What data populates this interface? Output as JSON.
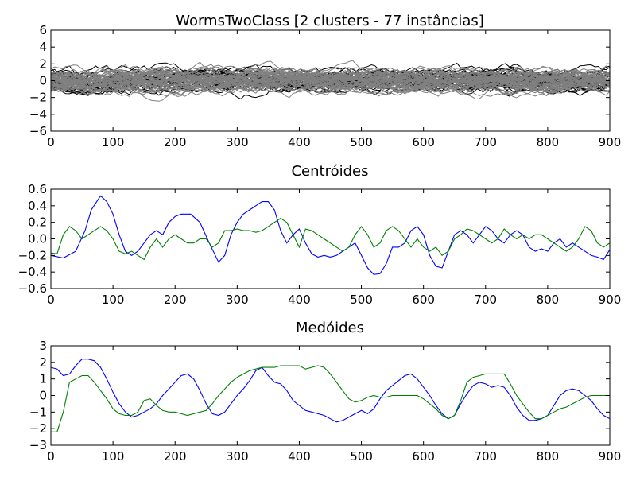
{
  "chart_data": [
    {
      "type": "line",
      "title": "WormsTwoClass [2 clusters - 77 instâncias]",
      "xlim": [
        0,
        900
      ],
      "ylim": [
        -6,
        6
      ],
      "xticks": [
        0,
        100,
        200,
        300,
        400,
        500,
        600,
        700,
        800,
        900
      ],
      "yticks": [
        -6,
        -4,
        -2,
        0,
        2,
        4,
        6
      ],
      "grid": false,
      "legend": "none",
      "series": [
        {
          "color": "#000000",
          "count": 28,
          "amplitude": 2.8
        },
        {
          "color": "#808080",
          "count": 49,
          "amplitude": 3.2
        }
      ]
    },
    {
      "type": "line",
      "title": "Centróides",
      "xlim": [
        0,
        900
      ],
      "ylim": [
        -0.6,
        0.6
      ],
      "xticks": [
        0,
        100,
        200,
        300,
        400,
        500,
        600,
        700,
        800,
        900
      ],
      "yticks": [
        -0.6,
        -0.4,
        -0.2,
        0.0,
        0.2,
        0.4,
        0.6
      ],
      "grid": false,
      "legend": "none",
      "series": [
        {
          "color": "#0000ff",
          "x": [
            0,
            20,
            40,
            55,
            65,
            80,
            90,
            100,
            110,
            120,
            130,
            140,
            150,
            160,
            170,
            180,
            190,
            200,
            210,
            225,
            240,
            255,
            270,
            280,
            290,
            300,
            310,
            320,
            330,
            340,
            350,
            360,
            370,
            380,
            390,
            400,
            410,
            420,
            430,
            440,
            450,
            460,
            470,
            480,
            490,
            500,
            510,
            520,
            530,
            540,
            550,
            560,
            570,
            580,
            590,
            600,
            610,
            620,
            630,
            640,
            650,
            660,
            670,
            680,
            690,
            700,
            710,
            720,
            730,
            740,
            750,
            760,
            770,
            780,
            790,
            800,
            810,
            820,
            830,
            840,
            850,
            860,
            870,
            880,
            890,
            900
          ],
          "y": [
            -0.2,
            -0.23,
            -0.15,
            0.1,
            0.35,
            0.52,
            0.45,
            0.3,
            0.05,
            -0.15,
            -0.2,
            -0.15,
            -0.05,
            0.05,
            0.1,
            0.05,
            0.2,
            0.27,
            0.3,
            0.3,
            0.2,
            -0.05,
            -0.28,
            -0.2,
            0.05,
            0.2,
            0.3,
            0.35,
            0.4,
            0.45,
            0.45,
            0.35,
            0.1,
            -0.05,
            0.05,
            0.12,
            -0.05,
            -0.18,
            -0.22,
            -0.2,
            -0.22,
            -0.2,
            -0.15,
            -0.1,
            -0.05,
            -0.2,
            -0.35,
            -0.43,
            -0.42,
            -0.3,
            -0.1,
            -0.1,
            -0.05,
            0.1,
            0.15,
            0.05,
            -0.2,
            -0.33,
            -0.35,
            -0.15,
            0.05,
            0.1,
            0.05,
            -0.05,
            0.05,
            0.15,
            0.1,
            0.0,
            -0.05,
            0.05,
            0.1,
            0.05,
            -0.1,
            -0.15,
            -0.12,
            -0.15,
            -0.05,
            0.0,
            -0.1,
            -0.05,
            -0.1,
            -0.15,
            -0.2,
            -0.22,
            -0.25,
            -0.13
          ]
        },
        {
          "color": "#008000",
          "x": [
            0,
            10,
            20,
            30,
            40,
            50,
            60,
            70,
            80,
            90,
            100,
            110,
            120,
            130,
            140,
            150,
            160,
            170,
            180,
            190,
            200,
            210,
            220,
            230,
            240,
            250,
            260,
            270,
            280,
            290,
            300,
            310,
            320,
            330,
            340,
            350,
            360,
            370,
            380,
            390,
            400,
            410,
            420,
            430,
            440,
            450,
            460,
            470,
            480,
            490,
            500,
            510,
            520,
            530,
            540,
            550,
            560,
            570,
            580,
            590,
            600,
            610,
            620,
            630,
            640,
            650,
            660,
            670,
            680,
            690,
            700,
            710,
            720,
            730,
            740,
            750,
            760,
            770,
            780,
            790,
            800,
            810,
            820,
            830,
            840,
            850,
            860,
            870,
            880,
            890,
            900
          ],
          "y": [
            -0.17,
            -0.18,
            0.05,
            0.15,
            0.1,
            0.0,
            0.05,
            0.1,
            0.15,
            0.1,
            0.0,
            -0.15,
            -0.18,
            -0.15,
            -0.2,
            -0.25,
            -0.1,
            0.0,
            -0.1,
            0.0,
            0.05,
            0.0,
            -0.05,
            -0.05,
            0.0,
            0.0,
            -0.1,
            -0.05,
            0.1,
            0.1,
            0.12,
            0.1,
            0.1,
            0.08,
            0.1,
            0.15,
            0.2,
            0.25,
            0.2,
            0.05,
            -0.1,
            0.12,
            0.1,
            0.05,
            0.0,
            -0.05,
            -0.1,
            -0.15,
            -0.1,
            0.05,
            0.15,
            0.05,
            -0.1,
            -0.05,
            0.1,
            0.15,
            0.1,
            0.0,
            -0.1,
            0.0,
            -0.1,
            -0.15,
            -0.1,
            -0.2,
            -0.15,
            0.0,
            0.05,
            0.12,
            0.1,
            0.05,
            0.0,
            -0.05,
            0.0,
            0.12,
            0.05,
            0.0,
            0.05,
            0.0,
            0.05,
            0.05,
            0.0,
            -0.05,
            -0.1,
            -0.15,
            -0.1,
            0.0,
            0.15,
            0.1,
            -0.05,
            -0.1,
            -0.05
          ]
        }
      ]
    },
    {
      "type": "line",
      "title": "Medóides",
      "xlim": [
        0,
        900
      ],
      "ylim": [
        -3,
        3
      ],
      "xticks": [
        0,
        100,
        200,
        300,
        400,
        500,
        600,
        700,
        800,
        900
      ],
      "yticks": [
        -3,
        -2,
        -1,
        0,
        1,
        2,
        3
      ],
      "grid": false,
      "legend": "none",
      "series": [
        {
          "color": "#0000ff",
          "x": [
            0,
            10,
            20,
            30,
            40,
            50,
            60,
            70,
            80,
            90,
            100,
            110,
            120,
            130,
            140,
            150,
            160,
            170,
            180,
            190,
            200,
            210,
            220,
            230,
            240,
            250,
            260,
            270,
            280,
            290,
            300,
            310,
            320,
            330,
            340,
            350,
            360,
            370,
            380,
            390,
            400,
            410,
            420,
            430,
            440,
            450,
            460,
            470,
            480,
            490,
            500,
            510,
            520,
            530,
            540,
            550,
            560,
            570,
            580,
            590,
            600,
            610,
            620,
            630,
            640,
            650,
            660,
            670,
            680,
            690,
            700,
            710,
            720,
            730,
            740,
            750,
            760,
            770,
            780,
            790,
            800,
            810,
            820,
            830,
            840,
            850,
            860,
            870,
            880,
            890,
            900
          ],
          "y": [
            1.7,
            1.6,
            1.2,
            1.3,
            1.8,
            2.2,
            2.2,
            2.1,
            1.7,
            1.0,
            0.2,
            -0.5,
            -1.0,
            -1.3,
            -1.2,
            -1.0,
            -0.8,
            -0.5,
            0.0,
            0.4,
            0.8,
            1.2,
            1.3,
            1.0,
            0.3,
            -0.5,
            -1.1,
            -1.2,
            -1.0,
            -0.5,
            0.0,
            0.4,
            0.9,
            1.5,
            1.7,
            1.2,
            0.8,
            0.7,
            0.3,
            -0.3,
            -0.6,
            -0.9,
            -1.0,
            -1.1,
            -1.2,
            -1.4,
            -1.6,
            -1.5,
            -1.3,
            -1.1,
            -0.9,
            -1.1,
            -0.8,
            -0.2,
            0.3,
            0.6,
            0.9,
            1.2,
            1.3,
            1.0,
            0.5,
            0.0,
            -0.6,
            -1.1,
            -1.4,
            -1.2,
            -0.5,
            0.1,
            0.6,
            0.8,
            0.7,
            0.5,
            0.6,
            0.5,
            0.0,
            -0.7,
            -1.2,
            -1.5,
            -1.5,
            -1.4,
            -1.2,
            -0.6,
            0.0,
            0.3,
            0.4,
            0.3,
            0.0,
            -0.3,
            -0.8,
            -1.2,
            -1.4
          ]
        },
        {
          "color": "#008000",
          "x": [
            0,
            10,
            20,
            30,
            40,
            50,
            60,
            70,
            80,
            90,
            100,
            110,
            120,
            130,
            140,
            150,
            160,
            170,
            180,
            190,
            200,
            210,
            220,
            230,
            240,
            250,
            260,
            270,
            280,
            290,
            300,
            310,
            320,
            330,
            340,
            350,
            360,
            370,
            380,
            390,
            400,
            410,
            420,
            430,
            440,
            450,
            460,
            470,
            480,
            490,
            500,
            510,
            520,
            530,
            540,
            550,
            560,
            570,
            580,
            590,
            600,
            610,
            620,
            630,
            640,
            650,
            660,
            670,
            680,
            690,
            700,
            710,
            720,
            730,
            740,
            750,
            760,
            770,
            780,
            790,
            800,
            810,
            820,
            830,
            840,
            850,
            860,
            870,
            880,
            890,
            900
          ],
          "y": [
            -2.2,
            -2.2,
            -1.0,
            0.8,
            1.0,
            1.2,
            1.2,
            0.8,
            0.3,
            -0.2,
            -0.8,
            -1.1,
            -1.2,
            -1.2,
            -1.0,
            -0.3,
            -0.2,
            -0.6,
            -0.9,
            -1.0,
            -1.0,
            -1.1,
            -1.2,
            -1.1,
            -1.0,
            -0.9,
            -0.5,
            0.0,
            0.4,
            0.8,
            1.1,
            1.3,
            1.5,
            1.6,
            1.7,
            1.7,
            1.7,
            1.8,
            1.8,
            1.8,
            1.8,
            1.6,
            1.7,
            1.8,
            1.7,
            1.3,
            0.8,
            0.3,
            -0.2,
            -0.4,
            -0.3,
            -0.1,
            0.0,
            -0.1,
            -0.1,
            0.0,
            0.0,
            0.0,
            0.0,
            0.0,
            -0.2,
            -0.5,
            -0.8,
            -1.2,
            -1.4,
            -1.2,
            -0.3,
            0.8,
            1.1,
            1.2,
            1.3,
            1.3,
            1.3,
            1.3,
            0.7,
            0.0,
            -0.5,
            -1.0,
            -1.4,
            -1.4,
            -1.2,
            -1.0,
            -0.8,
            -0.7,
            -0.5,
            -0.3,
            -0.1,
            0.0,
            0.0,
            0.0,
            0.0
          ]
        }
      ]
    }
  ]
}
